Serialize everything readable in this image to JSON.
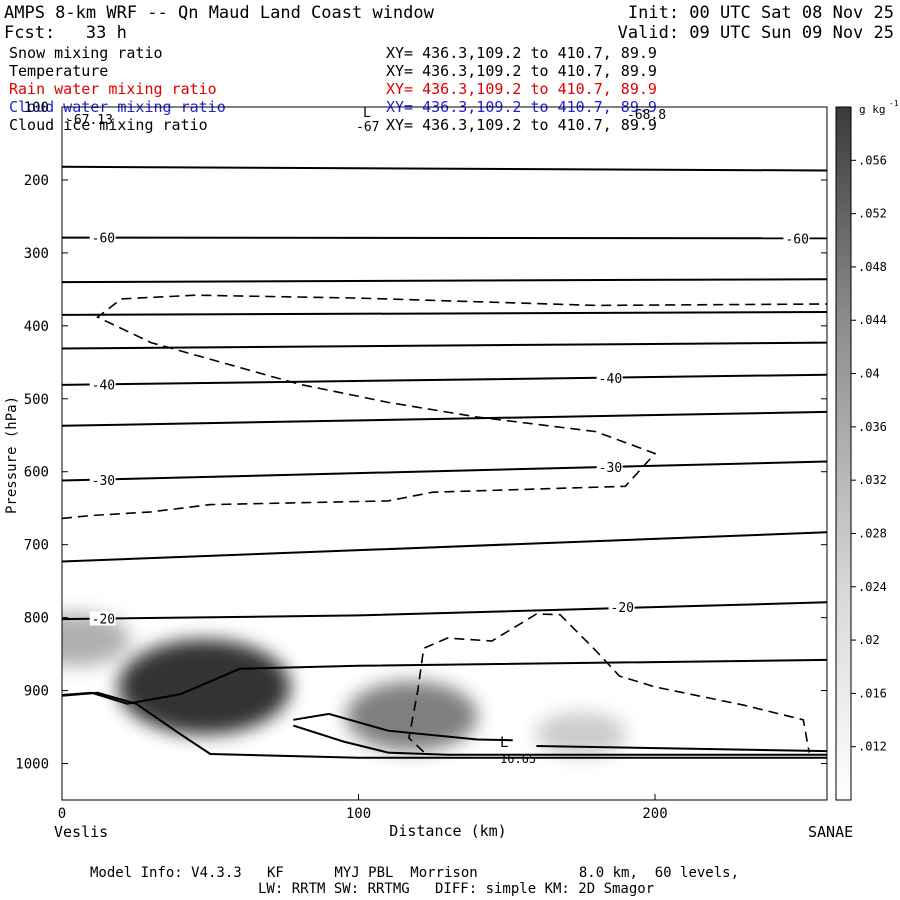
{
  "header": {
    "title": "AMPS 8-km WRF -- Qn Maud Land Coast window",
    "init": "Init: 00 UTC Sat 08 Nov 25",
    "fcst": "Fcst:   33 h",
    "valid": "Valid: 09 UTC Sun 09 Nov 25"
  },
  "fields": [
    {
      "name": "Snow mixing ratio",
      "xy": "XY= 436.3,109.2 to 410.7, 89.9",
      "color": "#000000"
    },
    {
      "name": "Temperature",
      "xy": "XY= 436.3,109.2 to 410.7, 89.9",
      "color": "#000000"
    },
    {
      "name": "Rain water mixing ratio",
      "xy": "XY= 436.3,109.2 to 410.7, 89.9",
      "color": "#e00000"
    },
    {
      "name": "Cloud water mixing ratio",
      "xy": "XY= 436.3,109.2 to 410.7, 89.9",
      "color": "#2020e0"
    },
    {
      "name": "Cloud ice mixing ratio",
      "xy": "XY= 436.3,109.2 to 410.7, 89.9",
      "color": "#000000"
    }
  ],
  "extras": {
    "top_low": "L",
    "top_min_left": "-67.13",
    "top_min_mid": "-67",
    "top_min_right": "-68.8",
    "low_mark": "L",
    "low_value": "16.65"
  },
  "footer": {
    "line1": "Model Info: V4.3.3   KF      MYJ PBL  Morrison            8.0 km,  60 levels,",
    "line2": "LW: RRTM SW: RRTMG   DIFF: simple KM: 2D Smagor"
  },
  "chart_data": {
    "type": "cross-section",
    "xlabel": "Distance (km)",
    "ylabel": "Pressure (hPa)",
    "xlim": [
      0,
      258
    ],
    "ylim": [
      1050,
      100
    ],
    "xticks": [
      0,
      100,
      200
    ],
    "yticks": [
      100,
      200,
      300,
      400,
      500,
      600,
      700,
      800,
      900,
      1000
    ],
    "left_endpoint": "Veslis",
    "right_endpoint": "SANAE",
    "colorbar": {
      "label": "g kg",
      "unit_exponent": "-1",
      "ticks": [
        ".012",
        ".016",
        ".02",
        ".024",
        ".028",
        ".032",
        ".036",
        ".04",
        ".044",
        ".048",
        ".052",
        ".056"
      ],
      "range": [
        0.008,
        0.06
      ]
    },
    "temperature_isotherms": [
      {
        "points": [
          [
            0,
            182
          ],
          [
            258,
            187
          ]
        ]
      },
      {
        "label": "-60",
        "points": [
          [
            0,
            279
          ],
          [
            258,
            280
          ]
        ]
      },
      {
        "points": [
          [
            0,
            340
          ],
          [
            258,
            336
          ]
        ]
      },
      {
        "points": [
          [
            0,
            385
          ],
          [
            258,
            381
          ]
        ]
      },
      {
        "points": [
          [
            0,
            431
          ],
          [
            258,
            423
          ]
        ]
      },
      {
        "label": "-40",
        "points": [
          [
            0,
            481
          ],
          [
            258,
            467
          ]
        ]
      },
      {
        "points": [
          [
            0,
            537
          ],
          [
            258,
            518
          ]
        ]
      },
      {
        "label": "-30",
        "points": [
          [
            0,
            612
          ],
          [
            258,
            586
          ]
        ]
      },
      {
        "points": [
          [
            0,
            723
          ],
          [
            258,
            683
          ]
        ]
      },
      {
        "label": "-20",
        "points": [
          [
            0,
            802
          ],
          [
            100,
            797
          ],
          [
            258,
            779
          ]
        ]
      },
      {
        "points": [
          [
            0,
            906
          ],
          [
            10,
            903
          ],
          [
            22,
            918
          ],
          [
            40,
            905
          ],
          [
            60,
            870
          ],
          [
            100,
            866
          ],
          [
            258,
            858
          ]
        ]
      },
      {
        "points": [
          [
            0,
            907
          ],
          [
            12,
            903
          ],
          [
            25,
            918
          ],
          [
            40,
            960
          ],
          [
            50,
            987
          ],
          [
            100,
            992
          ],
          [
            258,
            992
          ]
        ]
      },
      {
        "points": [
          [
            78,
            940
          ],
          [
            90,
            932
          ],
          [
            110,
            955
          ],
          [
            140,
            967
          ],
          [
            152,
            968
          ]
        ]
      },
      {
        "points": [
          [
            78,
            948
          ],
          [
            95,
            970
          ],
          [
            110,
            985
          ],
          [
            130,
            988
          ],
          [
            258,
            988
          ]
        ]
      },
      {
        "points": [
          [
            160,
            976
          ],
          [
            258,
            983
          ]
        ]
      }
    ],
    "dashed_contours": [
      {
        "points": [
          [
            0,
            664
          ],
          [
            10,
            660
          ],
          [
            30,
            655
          ],
          [
            50,
            645
          ],
          [
            110,
            640
          ],
          [
            125,
            628
          ],
          [
            190,
            620
          ],
          [
            200,
            575
          ],
          [
            180,
            545
          ],
          [
            140,
            525
          ],
          [
            110,
            505
          ],
          [
            80,
            480
          ],
          [
            30,
            423
          ],
          [
            12,
            388
          ],
          [
            20,
            363
          ],
          [
            45,
            358
          ],
          [
            100,
            362
          ],
          [
            180,
            372
          ],
          [
            258,
            370
          ]
        ]
      },
      {
        "points": [
          [
            122,
            984
          ],
          [
            117,
            965
          ],
          [
            120,
            900
          ],
          [
            122,
            842
          ],
          [
            130,
            828
          ],
          [
            145,
            832
          ],
          [
            160,
            795
          ],
          [
            168,
            796
          ],
          [
            180,
            845
          ],
          [
            188,
            880
          ],
          [
            200,
            895
          ],
          [
            230,
            920
          ],
          [
            250,
            940
          ],
          [
            252,
            985
          ]
        ]
      }
    ],
    "snow_maxima": [
      {
        "distance": 48,
        "pressure": 895,
        "value": 0.056
      },
      {
        "distance": 118,
        "pressure": 935,
        "value": 0.034
      },
      {
        "distance": 5,
        "pressure": 830,
        "value": 0.02
      },
      {
        "distance": 175,
        "pressure": 960,
        "value": 0.012
      }
    ]
  }
}
